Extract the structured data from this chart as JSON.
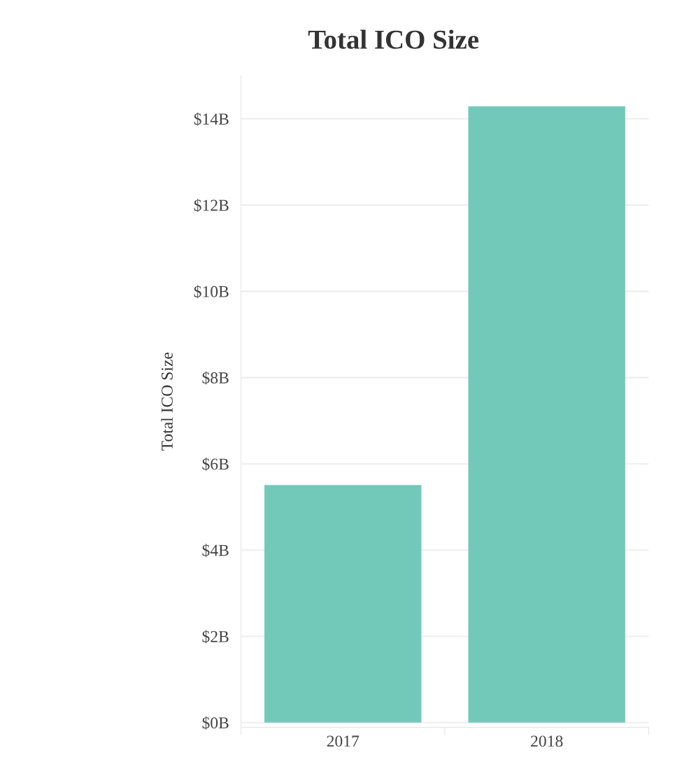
{
  "chart_data": {
    "type": "bar",
    "title": "Total ICO Size",
    "ylabel": "Total ICO Size",
    "categories": [
      "2017",
      "2018"
    ],
    "series": [
      {
        "color": "#73c9b9",
        "values": [
          5.51,
          14.29
        ]
      }
    ],
    "ylim": [
      -0.11,
      15
    ],
    "yticks": [
      {
        "value": 0,
        "label": "$0B"
      },
      {
        "value": 2,
        "label": "$2B"
      },
      {
        "value": 4,
        "label": "$4B"
      },
      {
        "value": 6,
        "label": "$6B"
      },
      {
        "value": 8,
        "label": "$8B"
      },
      {
        "value": 10,
        "label": "$10B"
      },
      {
        "value": 12,
        "label": "$12B"
      },
      {
        "value": 14,
        "label": "$14B"
      }
    ],
    "grid": "y"
  }
}
